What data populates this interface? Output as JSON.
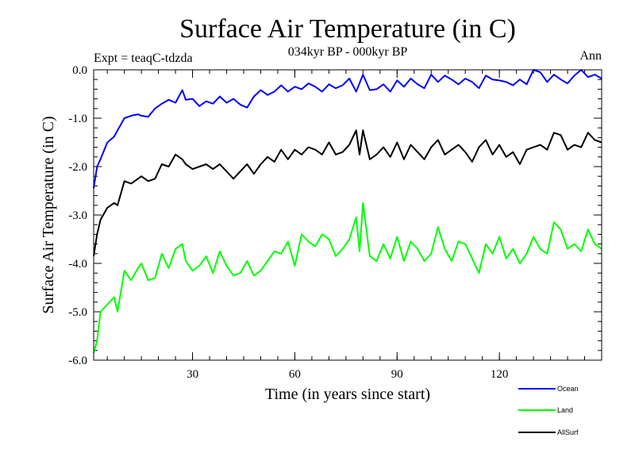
{
  "chart_data": {
    "type": "line",
    "title": "Surface Air Temperature (in C)",
    "subtitle": "034kyr BP - 000kyr BP",
    "experiment_label": "Expt = teaqC-tdzda",
    "period_label": "Ann",
    "xlabel": "Time (in years since start)",
    "ylabel": "Surface Air Temperature (in C)",
    "xlim": [
      1,
      150
    ],
    "ylim": [
      -6.0,
      0.0
    ],
    "xticks": [
      30,
      60,
      90,
      120
    ],
    "xtick_labels": [
      "30",
      "60",
      "90",
      "120"
    ],
    "yticks": [
      0.0,
      -1.0,
      -2.0,
      -3.0,
      -4.0,
      -5.0,
      -6.0
    ],
    "ytick_labels": [
      "0.0",
      "-1.0",
      "-2.0",
      "-3.0",
      "-4.0",
      "-5.0",
      "-6.0"
    ],
    "legend_position": "bottom-right",
    "series": [
      {
        "name": "Ocean",
        "color": "#0000ff",
        "x": [
          1,
          2,
          3,
          5,
          7,
          8,
          10,
          12,
          14,
          15,
          17,
          19,
          21,
          23,
          25,
          27,
          28,
          30,
          32,
          34,
          36,
          38,
          40,
          42,
          44,
          46,
          48,
          50,
          52,
          54,
          56,
          58,
          60,
          62,
          64,
          66,
          68,
          70,
          72,
          74,
          76,
          78,
          80,
          82,
          84,
          86,
          88,
          90,
          92,
          94,
          96,
          98,
          100,
          102,
          104,
          106,
          108,
          110,
          112,
          114,
          116,
          118,
          120,
          122,
          124,
          126,
          128,
          130,
          132,
          134,
          136,
          138,
          140,
          142,
          144,
          146,
          148,
          150
        ],
        "values": [
          -2.45,
          -2.0,
          -1.85,
          -1.5,
          -1.38,
          -1.25,
          -1.0,
          -0.95,
          -0.92,
          -0.95,
          -0.97,
          -0.8,
          -0.7,
          -0.62,
          -0.68,
          -0.42,
          -0.62,
          -0.6,
          -0.75,
          -0.65,
          -0.7,
          -0.55,
          -0.68,
          -0.6,
          -0.72,
          -0.78,
          -0.55,
          -0.42,
          -0.52,
          -0.45,
          -0.32,
          -0.45,
          -0.35,
          -0.4,
          -0.28,
          -0.35,
          -0.45,
          -0.3,
          -0.38,
          -0.32,
          -0.18,
          -0.45,
          -0.1,
          -0.42,
          -0.4,
          -0.3,
          -0.45,
          -0.22,
          -0.35,
          -0.18,
          -0.3,
          -0.38,
          -0.1,
          -0.25,
          -0.12,
          -0.2,
          -0.3,
          -0.18,
          -0.25,
          -0.38,
          -0.12,
          -0.2,
          -0.22,
          -0.25,
          -0.32,
          -0.2,
          -0.3,
          0.0,
          -0.05,
          -0.25,
          -0.1,
          -0.2,
          -0.28,
          -0.12,
          0.0,
          -0.15,
          -0.1,
          -0.18
        ]
      },
      {
        "name": "Land",
        "color": "#00ff00",
        "x": [
          1,
          2,
          3,
          5,
          7,
          8,
          10,
          12,
          14,
          15,
          17,
          19,
          21,
          23,
          25,
          27,
          28,
          30,
          32,
          34,
          36,
          38,
          40,
          42,
          44,
          46,
          48,
          50,
          52,
          54,
          56,
          58,
          60,
          62,
          64,
          66,
          68,
          70,
          72,
          74,
          76,
          78,
          79,
          80,
          82,
          84,
          86,
          88,
          90,
          92,
          94,
          96,
          98,
          100,
          102,
          104,
          106,
          108,
          110,
          112,
          114,
          116,
          118,
          120,
          122,
          124,
          126,
          128,
          130,
          132,
          134,
          136,
          138,
          140,
          142,
          144,
          146,
          148,
          150
        ],
        "values": [
          -5.85,
          -5.6,
          -5.0,
          -4.85,
          -4.7,
          -5.0,
          -4.15,
          -4.35,
          -4.1,
          -4.0,
          -4.35,
          -4.3,
          -3.8,
          -4.1,
          -3.7,
          -3.6,
          -3.95,
          -4.15,
          -4.05,
          -3.85,
          -4.2,
          -3.75,
          -4.05,
          -4.25,
          -4.2,
          -3.95,
          -4.25,
          -4.15,
          -3.95,
          -3.75,
          -3.8,
          -3.55,
          -4.05,
          -3.4,
          -3.55,
          -3.65,
          -3.4,
          -3.5,
          -3.85,
          -3.7,
          -3.5,
          -3.05,
          -3.75,
          -2.75,
          -3.85,
          -3.95,
          -3.6,
          -3.9,
          -3.45,
          -3.95,
          -3.55,
          -3.7,
          -3.95,
          -3.8,
          -3.25,
          -3.7,
          -3.95,
          -3.55,
          -3.6,
          -3.9,
          -4.2,
          -3.6,
          -3.8,
          -3.45,
          -3.9,
          -3.7,
          -4.0,
          -3.8,
          -3.45,
          -3.7,
          -3.8,
          -3.15,
          -3.3,
          -3.7,
          -3.6,
          -3.75,
          -3.3,
          -3.6,
          -3.7
        ]
      },
      {
        "name": "AllSurf",
        "color": "#000000",
        "x": [
          1,
          2,
          3,
          5,
          7,
          8,
          10,
          12,
          14,
          15,
          17,
          19,
          21,
          23,
          25,
          27,
          28,
          30,
          32,
          34,
          36,
          38,
          40,
          42,
          44,
          46,
          48,
          50,
          52,
          54,
          56,
          58,
          60,
          62,
          64,
          66,
          68,
          70,
          72,
          74,
          76,
          78,
          79,
          80,
          82,
          84,
          86,
          88,
          90,
          92,
          94,
          96,
          98,
          100,
          102,
          104,
          106,
          108,
          110,
          112,
          114,
          116,
          118,
          120,
          122,
          124,
          126,
          128,
          130,
          132,
          134,
          136,
          138,
          140,
          142,
          144,
          146,
          148,
          150
        ],
        "values": [
          -3.85,
          -3.4,
          -3.1,
          -2.85,
          -2.75,
          -2.8,
          -2.3,
          -2.35,
          -2.25,
          -2.2,
          -2.3,
          -2.25,
          -1.95,
          -2.0,
          -1.75,
          -1.85,
          -1.95,
          -2.05,
          -2.0,
          -1.95,
          -2.05,
          -1.95,
          -2.1,
          -2.25,
          -2.1,
          -1.95,
          -2.15,
          -1.95,
          -1.8,
          -1.9,
          -1.65,
          -1.85,
          -1.65,
          -1.75,
          -1.6,
          -1.65,
          -1.75,
          -1.5,
          -1.75,
          -1.7,
          -1.55,
          -1.25,
          -1.75,
          -1.25,
          -1.85,
          -1.75,
          -1.6,
          -1.8,
          -1.5,
          -1.85,
          -1.55,
          -1.7,
          -1.85,
          -1.6,
          -1.45,
          -1.75,
          -1.65,
          -1.55,
          -1.7,
          -1.9,
          -1.6,
          -1.45,
          -1.75,
          -1.55,
          -1.8,
          -1.7,
          -1.95,
          -1.65,
          -1.6,
          -1.55,
          -1.65,
          -1.3,
          -1.35,
          -1.65,
          -1.55,
          -1.6,
          -1.3,
          -1.45,
          -1.5
        ]
      }
    ]
  }
}
